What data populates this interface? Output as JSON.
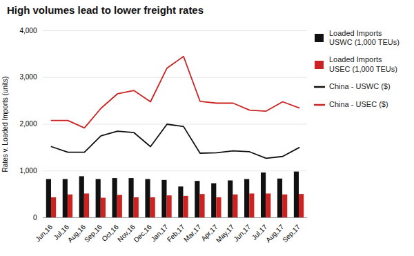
{
  "chart_data": {
    "type": "bar",
    "title": "High volumes lead to lower freight rates",
    "ylabel": "Rates v. Loaded Imports (units)",
    "categories": [
      "Jun,16",
      "Jul,16",
      "Aug,16",
      "Sep,16",
      "Oct,16",
      "Nov,16",
      "Dec,16",
      "Jan,17",
      "Feb,17",
      "Mar,17",
      "Apr,17",
      "May,17",
      "Jun,17",
      "Jul,17",
      "Aug,17",
      "Sep,17"
    ],
    "series": [
      {
        "name": "Loaded Imports\nUSWC (1,000 TEUs)",
        "type": "bar",
        "color": "#111111",
        "values": [
          820,
          820,
          880,
          820,
          840,
          840,
          820,
          800,
          660,
          780,
          730,
          790,
          820,
          960,
          830,
          980
        ]
      },
      {
        "name": "Loaded Imports\nUSEC (1,000 TEUs)",
        "type": "bar",
        "color": "#cc2222",
        "values": [
          430,
          490,
          510,
          420,
          480,
          430,
          430,
          470,
          460,
          500,
          430,
          490,
          510,
          510,
          490,
          500
        ]
      },
      {
        "name": "China - USWC ($)",
        "type": "line",
        "color": "#111111",
        "values": [
          1520,
          1400,
          1400,
          1750,
          1850,
          1820,
          1520,
          2000,
          1950,
          1380,
          1390,
          1430,
          1410,
          1270,
          1310,
          1500
        ]
      },
      {
        "name": "China - USEC ($)",
        "type": "line",
        "color": "#cc2222",
        "values": [
          2080,
          2080,
          1920,
          2340,
          2650,
          2720,
          2480,
          3200,
          3450,
          2490,
          2450,
          2450,
          2300,
          2280,
          2480,
          2350
        ]
      }
    ],
    "ylim": [
      0,
      4000
    ],
    "yticks": [
      0,
      {
        "value": 1000,
        "label": "1,000"
      },
      {
        "value": 2000,
        "label": "2,000"
      },
      {
        "value": 3000,
        "label": "3,000"
      },
      {
        "value": 4000,
        "label": "4,000"
      }
    ],
    "grid": true,
    "legend": "right"
  }
}
